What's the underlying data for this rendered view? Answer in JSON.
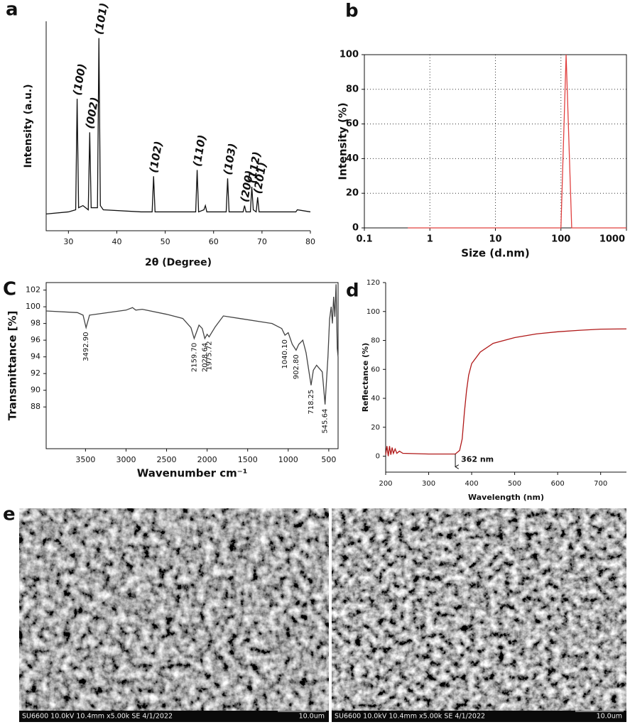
{
  "chart_data": [
    {
      "type": "line",
      "panel": "a",
      "xlabel": "2θ (Degree)",
      "ylabel": "Intensity (a.u.)",
      "xlim": [
        25.4,
        80
      ],
      "xticks": [
        30,
        40,
        50,
        60,
        70,
        80
      ],
      "ylim": [
        0,
        100
      ],
      "yticks": [],
      "series": [
        {
          "color": "#111111",
          "x": [
            25.4,
            30,
            31.5,
            31.8,
            32.1,
            33,
            34.1,
            34.4,
            34.7,
            36,
            36.3,
            36.6,
            37.2,
            45,
            47.3,
            47.6,
            47.9,
            56.3,
            56.6,
            56.9,
            58,
            58.3,
            58.6,
            62.6,
            62.9,
            63.2,
            66.1,
            66.4,
            66.7,
            67.6,
            67.9,
            68.2,
            68.8,
            69.1,
            69.4,
            72,
            77,
            77.3,
            80
          ],
          "values": [
            8,
            9,
            10,
            63,
            11,
            12,
            10,
            47,
            11,
            11,
            92,
            12,
            10,
            9,
            9,
            26,
            9,
            9,
            29,
            9,
            10,
            12,
            9,
            9,
            25,
            9,
            9,
            12,
            9,
            9,
            21,
            10,
            9,
            16,
            9,
            9,
            9,
            10,
            9
          ]
        }
      ],
      "annotations": [
        {
          "text": "(100)",
          "x": 31.8
        },
        {
          "text": "(002)",
          "x": 34.4
        },
        {
          "text": "(101)",
          "x": 36.3
        },
        {
          "text": "(102)",
          "x": 47.6
        },
        {
          "text": "(110)",
          "x": 56.6
        },
        {
          "text": "(103)",
          "x": 62.9
        },
        {
          "text": "(200)",
          "x": 66.4
        },
        {
          "text": "(112)",
          "x": 67.9
        },
        {
          "text": "(201)",
          "x": 69.1
        }
      ]
    },
    {
      "type": "line",
      "panel": "b",
      "xlabel": "Size (d.nm)",
      "ylabel": "Intensity (%)",
      "xscale": "log",
      "grid": true,
      "xlim": [
        0.1,
        1000
      ],
      "xticks": [
        0.1,
        1,
        10,
        100,
        1000
      ],
      "ylim": [
        0,
        100
      ],
      "yticks": [
        0,
        20,
        40,
        60,
        80,
        100
      ],
      "series": [
        {
          "color": "#e0403f",
          "x": [
            0.46,
            100,
            120,
            146,
            1000
          ],
          "values": [
            0,
            0,
            100,
            0,
            0
          ]
        }
      ]
    },
    {
      "type": "line",
      "panel": "C",
      "xlabel": "Wavenumber cm⁻¹",
      "ylabel": "Transmittance [%]",
      "xlim": [
        3985,
        385
      ],
      "xticks": [
        3500,
        3000,
        2500,
        2000,
        1500,
        1000,
        500
      ],
      "ylim": [
        83,
        102.9
      ],
      "yticks": [
        88,
        90,
        92,
        94,
        96,
        98,
        100,
        102
      ],
      "series": [
        {
          "color": "#444444",
          "x": [
            3985,
            3600,
            3530,
            3492.9,
            3450,
            3300,
            3000,
            2920,
            2880,
            2800,
            2500,
            2300,
            2200,
            2159.7,
            2100,
            2060,
            2028.64,
            2000,
            1975.72,
            1900,
            1800,
            1600,
            1200,
            1080,
            1040.1,
            1000,
            950,
            902.8,
            870,
            820,
            780,
            718.25,
            690,
            650,
            580,
            545.64,
            510,
            490,
            470,
            455,
            440,
            425,
            410,
            395,
            385
          ],
          "values": [
            99.5,
            99.3,
            99,
            97.5,
            99,
            99.2,
            99.6,
            99.9,
            99.6,
            99.7,
            99.1,
            98.6,
            97.5,
            96.2,
            97.8,
            97.4,
            96.2,
            96.7,
            96.4,
            97.6,
            98.9,
            98.6,
            98,
            97.4,
            96.6,
            96.9,
            95.5,
            94.8,
            95.5,
            96,
            94.5,
            90.6,
            92.4,
            93,
            92.2,
            88.3,
            94,
            98.5,
            100,
            98,
            101.2,
            98.8,
            102.7,
            95,
            94
          ]
        }
      ],
      "annotations": [
        {
          "text": "3492.90",
          "x": 3492.9
        },
        {
          "text": "2159.70",
          "x": 2159.7
        },
        {
          "text": "2028.64",
          "x": 2028.64
        },
        {
          "text": "1975.72",
          "x": 1975.72
        },
        {
          "text": "1040.10",
          "x": 1040.1
        },
        {
          "text": "902.80",
          "x": 902.8
        },
        {
          "text": "718.25",
          "x": 718.25
        },
        {
          "text": "545.64",
          "x": 545.64
        }
      ]
    },
    {
      "type": "line",
      "panel": "d",
      "xlabel": "Wavelength (nm)",
      "ylabel": "Reflectance (%)",
      "xlim": [
        200,
        760
      ],
      "xticks": [
        200,
        300,
        400,
        500,
        600,
        700
      ],
      "ylim": [
        -11,
        120
      ],
      "yticks": [
        0,
        20,
        40,
        60,
        80,
        100,
        120
      ],
      "series": [
        {
          "color": "#b01818",
          "x": [
            200,
            203,
            206,
            209,
            212,
            215,
            218,
            222,
            226,
            232,
            240,
            300,
            362,
            372,
            378,
            383,
            388,
            393,
            400,
            420,
            450,
            500,
            550,
            600,
            650,
            700,
            760
          ],
          "values": [
            1,
            7,
            0,
            7,
            1,
            6,
            2,
            5,
            2,
            3.5,
            2,
            1.5,
            1.5,
            4,
            12,
            30,
            45,
            56,
            64,
            72,
            78,
            82,
            84.5,
            86,
            87,
            87.8,
            88
          ]
        }
      ],
      "annotations": [
        {
          "text": "362 nm",
          "x": 362
        }
      ]
    }
  ],
  "micrographs": {
    "panel": "e",
    "images": [
      {
        "caption": "SU6600 10.0kV 10.4mm x5.00k SE  4/1/2022",
        "scale": "10.0um"
      },
      {
        "caption": "SU6600 10.0kV 10.4mm x5.00k SE  4/1/2022",
        "scale": "10.0um"
      }
    ]
  }
}
